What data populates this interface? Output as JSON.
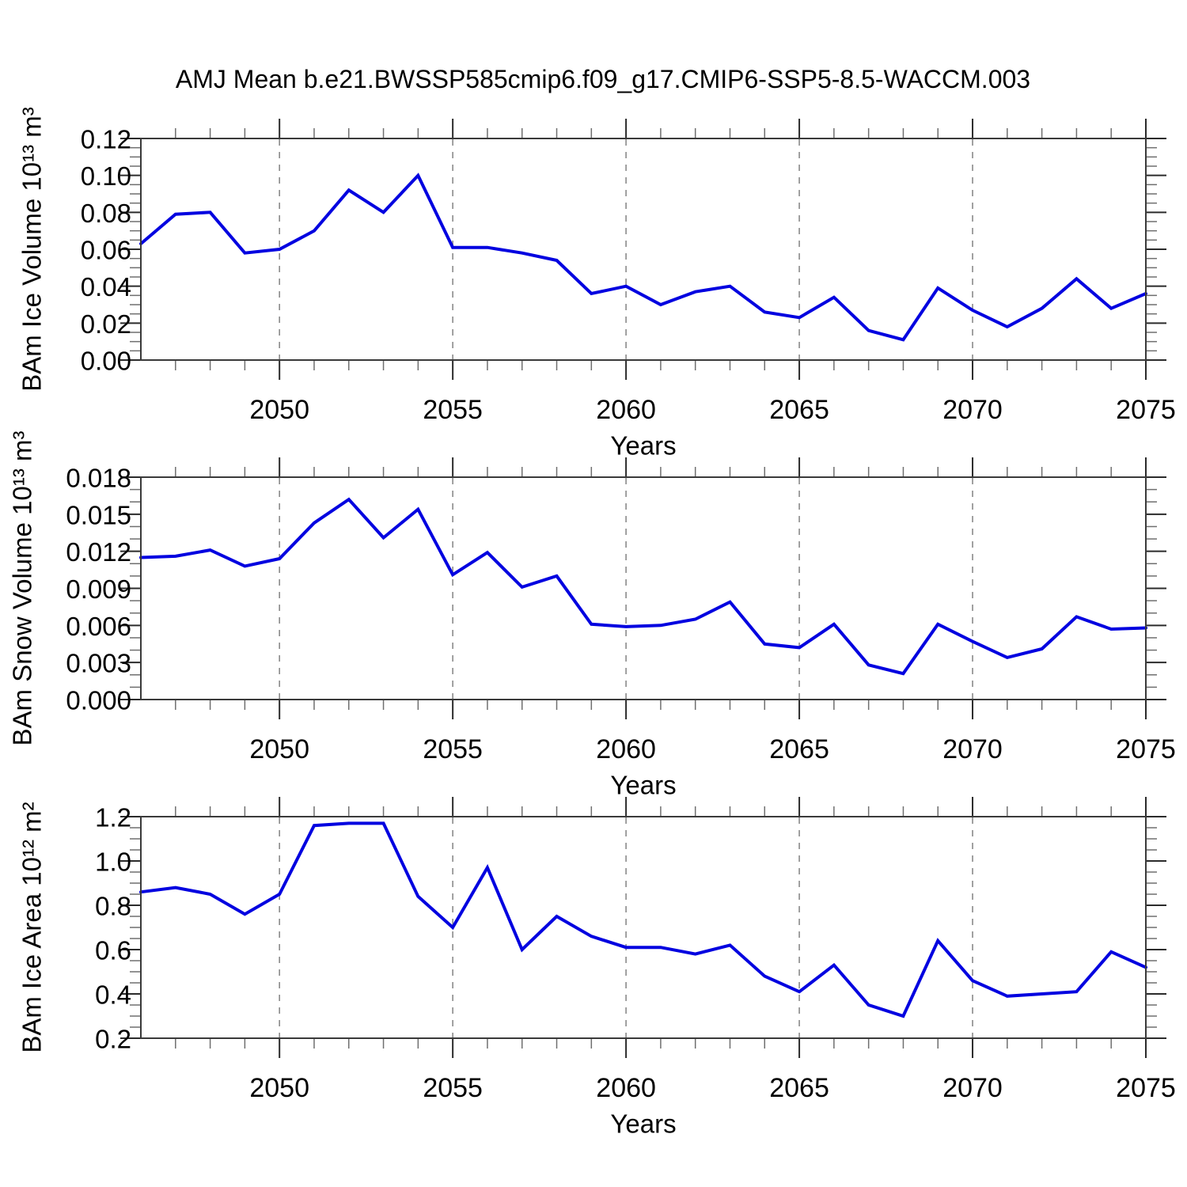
{
  "title": "AMJ Mean b.e21.BWSSP585cmip6.f09_g17.CMIP6-SSP5-8.5-WACCM.003",
  "colors": {
    "line": "#0202e0",
    "axis": "#3a3a3a",
    "major_tick": "#2b2b2b",
    "minor_tick": "#6f6f6f",
    "grid": "#8a8a8a",
    "text": "#000000",
    "background": "#ffffff"
  },
  "chart_data": [
    {
      "type": "line",
      "ylabel": "BAm Ice Volume 10¹³ m³",
      "xlabel": "Years",
      "x": [
        2046,
        2047,
        2048,
        2049,
        2050,
        2051,
        2052,
        2053,
        2054,
        2055,
        2056,
        2057,
        2058,
        2059,
        2060,
        2061,
        2062,
        2063,
        2064,
        2065,
        2066,
        2067,
        2068,
        2069,
        2070,
        2071,
        2072,
        2073,
        2074,
        2075
      ],
      "values": [
        0.063,
        0.079,
        0.08,
        0.058,
        0.06,
        0.07,
        0.092,
        0.08,
        0.1,
        0.061,
        0.061,
        0.058,
        0.054,
        0.036,
        0.04,
        0.03,
        0.037,
        0.04,
        0.026,
        0.023,
        0.034,
        0.016,
        0.011,
        0.039,
        0.027,
        0.018,
        0.028,
        0.044,
        0.028,
        0.036
      ],
      "xlim": [
        2046,
        2075
      ],
      "ylim": [
        0,
        0.12
      ],
      "yticks": {
        "values": [
          0,
          0.02,
          0.04,
          0.06,
          0.08,
          0.1,
          0.12
        ],
        "labels": [
          "0.00",
          "0.02",
          "0.04",
          "0.06",
          "0.08",
          "0.10",
          "0.12"
        ]
      },
      "yminor_step": 0.005,
      "xticks": {
        "values": [
          2050,
          2055,
          2060,
          2065,
          2070,
          2075
        ],
        "labels": [
          "2050",
          "2055",
          "2060",
          "2065",
          "2070",
          "2075"
        ]
      },
      "xminor_step": 1,
      "grid_x": [
        2050,
        2055,
        2060,
        2065,
        2070
      ],
      "grid_on": true,
      "legend": "none"
    },
    {
      "type": "line",
      "ylabel": "BAm Snow Volume 10¹³ m³",
      "xlabel": "Years",
      "x": [
        2046,
        2047,
        2048,
        2049,
        2050,
        2051,
        2052,
        2053,
        2054,
        2055,
        2056,
        2057,
        2058,
        2059,
        2060,
        2061,
        2062,
        2063,
        2064,
        2065,
        2066,
        2067,
        2068,
        2069,
        2070,
        2071,
        2072,
        2073,
        2074,
        2075
      ],
      "values": [
        0.0115,
        0.0116,
        0.0121,
        0.0108,
        0.0114,
        0.0143,
        0.0162,
        0.0131,
        0.0154,
        0.0101,
        0.0119,
        0.0091,
        0.01,
        0.0061,
        0.0059,
        0.006,
        0.0065,
        0.0079,
        0.0045,
        0.0042,
        0.0061,
        0.0028,
        0.0021,
        0.0061,
        0.0047,
        0.0034,
        0.0041,
        0.0067,
        0.0057,
        0.0058
      ],
      "xlim": [
        2046,
        2075
      ],
      "ylim": [
        0,
        0.018
      ],
      "yticks": {
        "values": [
          0,
          0.003,
          0.006,
          0.009,
          0.012,
          0.015,
          0.018
        ],
        "labels": [
          "0.000",
          "0.003",
          "0.006",
          "0.009",
          "0.012",
          "0.015",
          "0.018"
        ]
      },
      "yminor_step": 0.001,
      "xticks": {
        "values": [
          2050,
          2055,
          2060,
          2065,
          2070,
          2075
        ],
        "labels": [
          "2050",
          "2055",
          "2060",
          "2065",
          "2070",
          "2075"
        ]
      },
      "xminor_step": 1,
      "grid_x": [
        2050,
        2055,
        2060,
        2065,
        2070
      ],
      "grid_on": true,
      "legend": "none"
    },
    {
      "type": "line",
      "ylabel": "BAm Ice Area 10¹² m²",
      "xlabel": "Years",
      "x": [
        2046,
        2047,
        2048,
        2049,
        2050,
        2051,
        2052,
        2053,
        2054,
        2055,
        2056,
        2057,
        2058,
        2059,
        2060,
        2061,
        2062,
        2063,
        2064,
        2065,
        2066,
        2067,
        2068,
        2069,
        2070,
        2071,
        2072,
        2073,
        2074,
        2075
      ],
      "values": [
        0.86,
        0.88,
        0.85,
        0.76,
        0.85,
        1.16,
        1.17,
        1.17,
        0.84,
        0.7,
        0.97,
        0.6,
        0.75,
        0.66,
        0.61,
        0.61,
        0.58,
        0.62,
        0.48,
        0.41,
        0.53,
        0.35,
        0.3,
        0.64,
        0.46,
        0.39,
        0.4,
        0.41,
        0.59,
        0.52
      ],
      "xlim": [
        2046,
        2075
      ],
      "ylim": [
        0.2,
        1.2
      ],
      "yticks": {
        "values": [
          0.2,
          0.4,
          0.6,
          0.8,
          1.0,
          1.2
        ],
        "labels": [
          "0.2",
          "0.4",
          "0.6",
          "0.8",
          "1.0",
          "1.2"
        ]
      },
      "yminor_step": 0.05,
      "xticks": {
        "values": [
          2050,
          2055,
          2060,
          2065,
          2070,
          2075
        ],
        "labels": [
          "2050",
          "2055",
          "2060",
          "2065",
          "2070",
          "2075"
        ]
      },
      "xminor_step": 1,
      "grid_x": [
        2050,
        2055,
        2060,
        2065,
        2070
      ],
      "grid_on": true,
      "legend": "none"
    }
  ]
}
